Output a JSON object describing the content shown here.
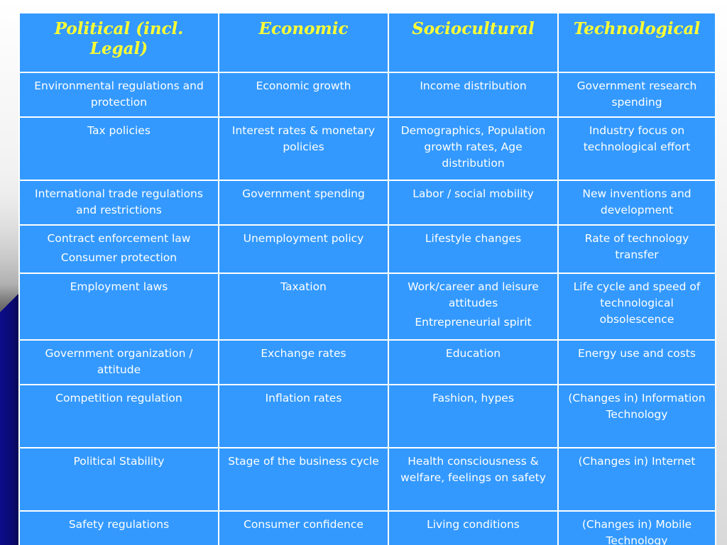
{
  "table": {
    "headers": [
      "Political (incl. Legal)",
      "Economic",
      "Sociocultural",
      "Technological"
    ],
    "rows": [
      [
        [
          "Environmental regulations and protection"
        ],
        [
          "Economic growth"
        ],
        [
          "Income distribution"
        ],
        [
          "Government research spending"
        ]
      ],
      [
        [
          "Tax policies"
        ],
        [
          "Interest rates & monetary policies"
        ],
        [
          "Demographics, Population growth rates, Age distribution"
        ],
        [
          "Industry focus on technological effort"
        ]
      ],
      [
        [
          "International trade regulations and restrictions"
        ],
        [
          "Government spending"
        ],
        [
          "Labor / social mobility"
        ],
        [
          "New inventions and development"
        ]
      ],
      [
        [
          "Contract enforcement law",
          "Consumer protection"
        ],
        [
          "Unemployment policy"
        ],
        [
          "Lifestyle changes"
        ],
        [
          "Rate of technology transfer"
        ]
      ],
      [
        [
          "Employment laws"
        ],
        [
          "Taxation"
        ],
        [
          "Work/career and leisure attitudes",
          "Entrepreneurial spirit"
        ],
        [
          "Life cycle and speed of technological obsolescence"
        ]
      ],
      [
        [
          "Government organization / attitude"
        ],
        [
          "Exchange rates"
        ],
        [
          "Education"
        ],
        [
          "Energy use and costs"
        ]
      ],
      [
        [
          "Competition regulation"
        ],
        [
          "Inflation rates"
        ],
        [
          "Fashion, hypes"
        ],
        [
          "(Changes in) Information Technology"
        ]
      ],
      [
        [
          "Political Stability"
        ],
        [
          "Stage of the business cycle"
        ],
        [
          "Health consciousness & welfare, feelings on safety"
        ],
        [
          "(Changes in) Internet"
        ]
      ],
      [
        [
          "Safety regulations"
        ],
        [
          "Consumer confidence"
        ],
        [
          "Living conditions"
        ],
        [
          "(Changes in) Mobile Technology"
        ]
      ]
    ]
  },
  "colors": {
    "cell_background": "#3399ff",
    "header_text": "#ffff33",
    "body_text": "#ffffff",
    "grid_lines": "#ffffff"
  }
}
